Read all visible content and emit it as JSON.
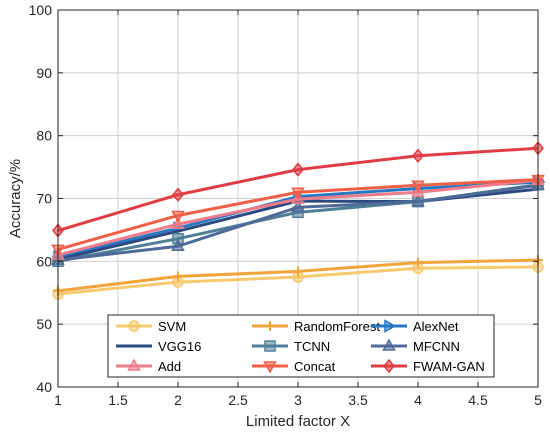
{
  "chart_data": {
    "type": "line",
    "xlabel": "Limited factor X",
    "ylabel": "Accuracy/%",
    "xlim": [
      1,
      5
    ],
    "ylim": [
      40,
      100
    ],
    "xticks": [
      "1",
      "1.5",
      "2",
      "2.5",
      "3",
      "3.5",
      "4",
      "4.5",
      "5"
    ],
    "yticks": [
      "40",
      "50",
      "60",
      "70",
      "80",
      "90",
      "100"
    ],
    "x": [
      1,
      2,
      3,
      4,
      5
    ],
    "grid": "vertical-and-horizontal",
    "legend_position": "bottom-center",
    "series": [
      {
        "name": "SVM",
        "color": "#f7c96e",
        "marker": "circle",
        "values": [
          54.8,
          56.7,
          57.5,
          58.9,
          59.1
        ]
      },
      {
        "name": "RandomForest",
        "color": "#f2a43a",
        "marker": "plus",
        "values": [
          55.3,
          57.6,
          58.4,
          59.8,
          60.2
        ]
      },
      {
        "name": "AlexNet",
        "color": "#2478c4",
        "marker": "triangle-right",
        "values": [
          60.7,
          65.3,
          70.3,
          71.6,
          72.6
        ]
      },
      {
        "name": "VGG16",
        "color": "#2a4a80",
        "marker": "none",
        "values": [
          60.3,
          64.8,
          69.6,
          69.5,
          71.5
        ]
      },
      {
        "name": "TCNN",
        "color": "#4e7f96",
        "marker": "square",
        "values": [
          60.0,
          63.6,
          67.8,
          69.5,
          72.2
        ]
      },
      {
        "name": "MFCNN",
        "color": "#4e6a98",
        "marker": "triangle-up",
        "values": [
          60.2,
          62.4,
          68.6,
          69.5,
          72.1
        ]
      },
      {
        "name": "Add",
        "color": "#f07c8a",
        "marker": "triangle-up",
        "values": [
          61.0,
          65.9,
          69.9,
          71.0,
          72.9
        ]
      },
      {
        "name": "Concat",
        "color": "#ef5f46",
        "marker": "triangle-down",
        "values": [
          61.9,
          67.3,
          71.0,
          72.1,
          73.0
        ]
      },
      {
        "name": "FWAM-GAN",
        "color": "#e03c44",
        "marker": "diamond",
        "values": [
          64.9,
          70.6,
          74.6,
          76.8,
          78.0
        ]
      }
    ]
  }
}
